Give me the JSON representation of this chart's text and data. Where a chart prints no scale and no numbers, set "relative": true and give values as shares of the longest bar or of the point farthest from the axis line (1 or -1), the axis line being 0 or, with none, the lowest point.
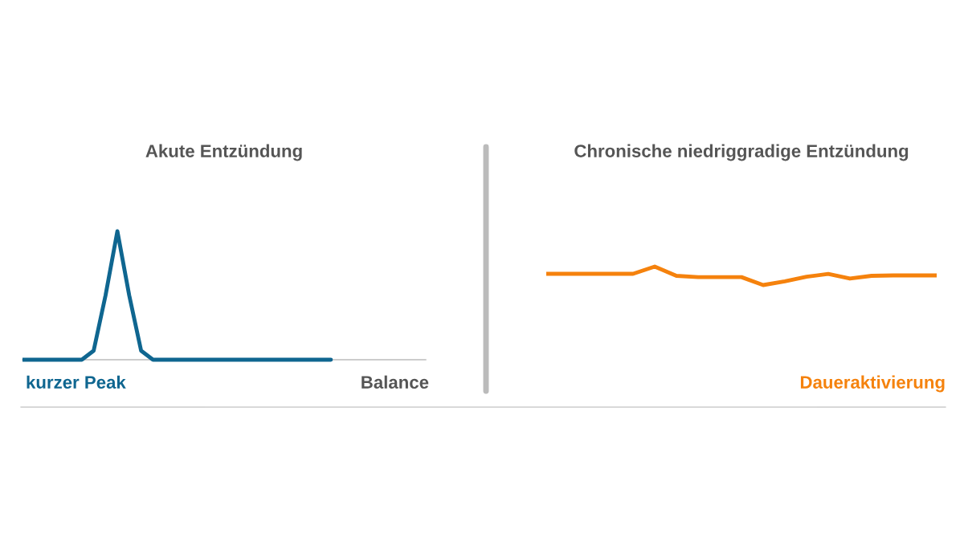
{
  "chart_data": [
    {
      "type": "line",
      "title": "Akute Entzündung",
      "relative": true,
      "categories": [
        null,
        null,
        null,
        null,
        null,
        null,
        null,
        null,
        null,
        null,
        null,
        null,
        null,
        null,
        null,
        null,
        null,
        null,
        null,
        null,
        null,
        null,
        null,
        null,
        null,
        null,
        null,
        null,
        null,
        null,
        null,
        null,
        null,
        null,
        null
      ],
      "series": [
        {
          "color": "#0f6690",
          "values": [
            0,
            0,
            0,
            0,
            0,
            0,
            0.07,
            0.5,
            1,
            0.5,
            0.07,
            0,
            0,
            0,
            0,
            0,
            0,
            0,
            0,
            0,
            0,
            0,
            0,
            0,
            0,
            0,
            0,
            null,
            null,
            null,
            null,
            null,
            null,
            null,
            null
          ]
        }
      ],
      "annotations": [
        "kurzer Peak",
        "Balance"
      ]
    },
    {
      "type": "line",
      "title": "Chronische niedriggradige Entzündung",
      "relative": true,
      "categories": [
        null,
        null,
        null,
        null,
        null,
        null,
        null,
        null,
        null,
        null,
        null,
        null,
        null,
        null,
        null,
        null,
        null,
        null,
        null
      ],
      "series": [
        {
          "color": "#f5820d",
          "values": [
            0.61,
            0.61,
            0.61,
            0.61,
            0.61,
            1,
            0.5,
            0.43,
            0.43,
            0.43,
            0,
            0.2,
            0.45,
            0.6,
            0.35,
            0.5,
            0.52,
            0.52,
            0.52
          ]
        }
      ],
      "annotations": [
        "Daueraktivierung"
      ]
    }
  ]
}
